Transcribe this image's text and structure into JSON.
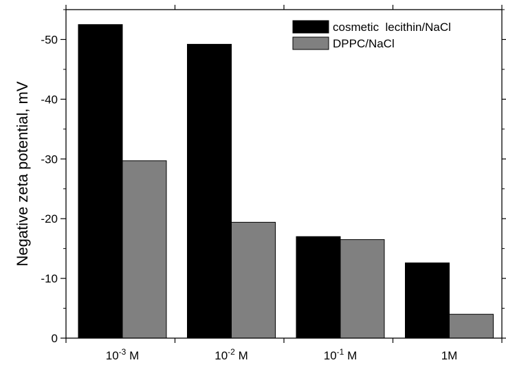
{
  "chart_data": {
    "type": "bar",
    "categories": [
      {
        "base": "10",
        "exp": "-3",
        "unit": " M"
      },
      {
        "base": "10",
        "exp": "-2",
        "unit": " M"
      },
      {
        "base": "10",
        "exp": "-1",
        "unit": " M"
      },
      {
        "base": "1M",
        "exp": "",
        "unit": ""
      }
    ],
    "series": [
      {
        "name": "cosmetic  lecithin/NaCl",
        "color": "#000000",
        "values": [
          -52.5,
          -49.2,
          -17.0,
          -12.6
        ]
      },
      {
        "name": "DPPC/NaCl",
        "color": "#808080",
        "values": [
          -29.7,
          -19.4,
          -16.5,
          -4.0
        ]
      }
    ],
    "ylabel": "Negative zeta potential, mV",
    "xlabel": "",
    "ylim": [
      0,
      -55
    ],
    "yticks": [
      0,
      -10,
      -20,
      -30,
      -40,
      -50
    ],
    "ytick_labels": [
      "0",
      "-10",
      "-20",
      "-30",
      "-40",
      "-50"
    ],
    "legend_position": "top-right",
    "grid": false
  }
}
